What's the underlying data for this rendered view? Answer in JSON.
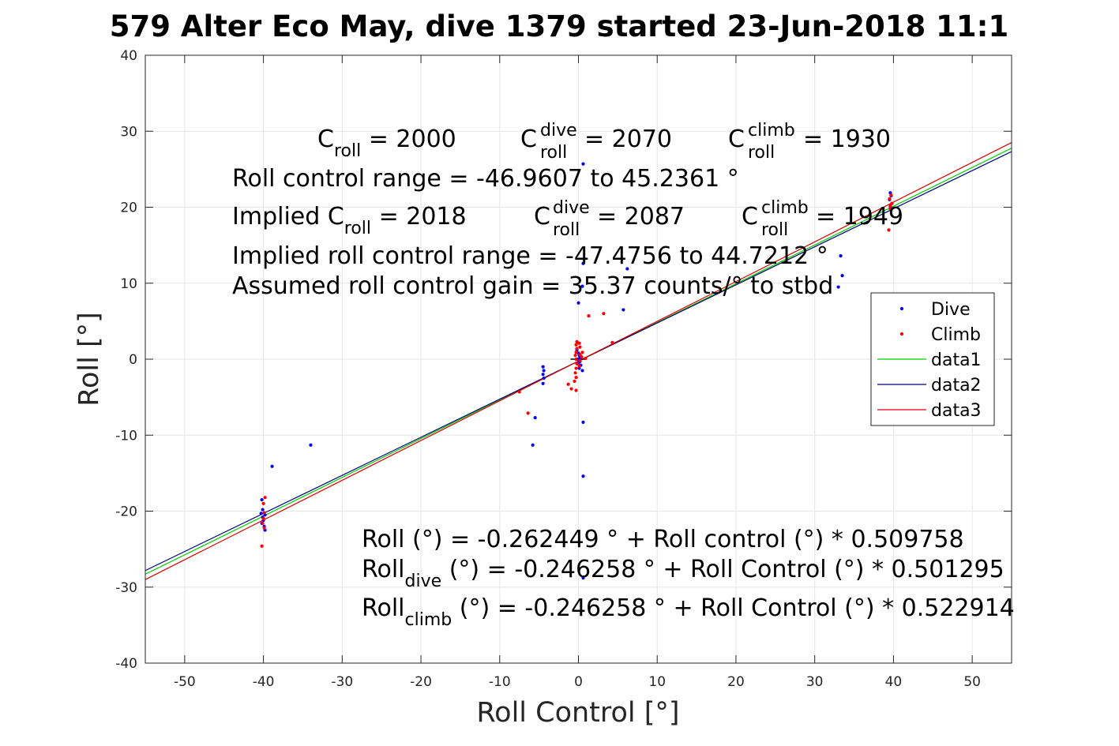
{
  "figure": {
    "title": "579 Alter Eco May, dive 1379 started 23-Jun-2018 11:1",
    "xlabel": "Roll Control [°]",
    "ylabel": "Roll [°]"
  },
  "annotations": {
    "c_roll": {
      "base": "C",
      "sub": "roll",
      "value": " = 2000"
    },
    "c_roll_dive": {
      "base": "C",
      "sup": "dive",
      "sub": "roll",
      "value": " = 2070"
    },
    "c_roll_climb": {
      "base": "C",
      "sup": "climb",
      "sub": "roll",
      "value": " = 1930"
    },
    "roll_control_range": "Roll control range = -46.9607 to 45.2361 °",
    "implied_c_roll": {
      "base": "Implied C",
      "sub": "roll",
      "value": " = 2018"
    },
    "implied_c_roll_dive": {
      "base": "C",
      "sup": "dive",
      "sub": "roll",
      "value": " = 2087"
    },
    "implied_c_roll_climb": {
      "base": "C",
      "sup": "climb",
      "sub": "roll",
      "value": " = 1949"
    },
    "implied_range": "Implied roll control range = -47.4756 to 44.7212 °",
    "assumed_gain": "Assumed roll control gain = 35.37 counts/° to stbd",
    "fit_all": "Roll (°) = -0.262449 ° + Roll control (°) * 0.509758",
    "fit_dive": {
      "base": "Roll",
      "sub": "dive",
      "value": " (°) = -0.246258 ° + Roll Control (°) * 0.501295"
    },
    "fit_climb": {
      "base": "Roll",
      "sub": "climb",
      "value": " (°) = -0.246258 ° + Roll Control (°) * 0.522914"
    }
  },
  "chart_data": {
    "type": "scatter",
    "title": "579 Alter Eco May, dive 1379 started 23-Jun-2018 11:1",
    "xlabel": "Roll Control [°]",
    "ylabel": "Roll [°]",
    "xlim": [
      -55,
      55
    ],
    "ylim": [
      -40,
      40
    ],
    "xticks": [
      -50,
      -40,
      -30,
      -20,
      -10,
      0,
      10,
      20,
      30,
      40,
      50
    ],
    "yticks": [
      -40,
      -30,
      -20,
      -10,
      0,
      10,
      20,
      30,
      40
    ],
    "grid": true,
    "legend_position": "right",
    "series": [
      {
        "name": "Dive",
        "kind": "points",
        "color": "#0000ff",
        "points": [
          [
            -40.2,
            -18.5
          ],
          [
            -40.3,
            -20.3
          ],
          [
            -40.1,
            -20.8
          ],
          [
            -40.0,
            -21.2
          ],
          [
            -40.2,
            -21.6
          ],
          [
            -39.9,
            -22.0
          ],
          [
            -39.8,
            -22.5
          ],
          [
            -40.1,
            -19.8
          ],
          [
            -39.8,
            -20.5
          ],
          [
            -40.0,
            -21.0
          ],
          [
            -38.9,
            -14.1
          ],
          [
            -34.0,
            -11.3
          ],
          [
            -4.5,
            -1.0
          ],
          [
            -4.4,
            -1.5
          ],
          [
            -4.5,
            -2.0
          ],
          [
            -4.4,
            -2.5
          ],
          [
            -4.5,
            -3.2
          ],
          [
            -5.5,
            -7.7
          ],
          [
            -5.8,
            -11.3
          ],
          [
            0.6,
            25.7
          ],
          [
            0.6,
            12.6
          ],
          [
            0.5,
            9.6
          ],
          [
            0.0,
            7.4
          ],
          [
            -0.2,
            1.2
          ],
          [
            0.0,
            0.8
          ],
          [
            0.1,
            0.5
          ],
          [
            0.2,
            0.2
          ],
          [
            -0.1,
            0.0
          ],
          [
            0.2,
            -0.3
          ],
          [
            0.0,
            -0.5
          ],
          [
            0.3,
            -0.8
          ],
          [
            0.1,
            -1.2
          ],
          [
            0.5,
            -1.5
          ],
          [
            0.6,
            -8.3
          ],
          [
            0.6,
            -15.4
          ],
          [
            0.6,
            -28.8
          ],
          [
            5.7,
            6.5
          ],
          [
            6.2,
            11.9
          ],
          [
            33.3,
            13.6
          ],
          [
            33.5,
            11.0
          ],
          [
            33.0,
            9.5
          ],
          [
            39.6,
            21.9
          ],
          [
            39.7,
            21.5
          ],
          [
            39.5,
            21.0
          ],
          [
            39.8,
            20.5
          ],
          [
            39.6,
            20.0
          ]
        ]
      },
      {
        "name": "Climb",
        "kind": "points",
        "color": "#ff0000",
        "points": [
          [
            -39.8,
            -18.2
          ],
          [
            -40.0,
            -19.0
          ],
          [
            -39.9,
            -20.2
          ],
          [
            -40.0,
            -21.0
          ],
          [
            -40.1,
            -21.6
          ],
          [
            -39.9,
            -22.2
          ],
          [
            -40.2,
            -24.6
          ],
          [
            -7.5,
            -4.3
          ],
          [
            -6.4,
            -7.1
          ],
          [
            -1.3,
            -3.3
          ],
          [
            -0.9,
            -3.9
          ],
          [
            -0.3,
            -4.1
          ],
          [
            -0.5,
            -2.9
          ],
          [
            -0.3,
            -2.4
          ],
          [
            -0.4,
            -1.8
          ],
          [
            -0.3,
            -1.2
          ],
          [
            -0.2,
            -0.6
          ],
          [
            -0.3,
            0.0
          ],
          [
            -0.4,
            0.5
          ],
          [
            -0.3,
            0.9
          ],
          [
            -0.2,
            1.4
          ],
          [
            -0.3,
            1.9
          ],
          [
            -0.2,
            2.3
          ],
          [
            0.1,
            2.1
          ],
          [
            0.2,
            1.6
          ],
          [
            0.2,
            0.6
          ],
          [
            0.2,
            -0.2
          ],
          [
            0.1,
            -0.9
          ],
          [
            0.4,
            0.3
          ],
          [
            0.5,
            0.9
          ],
          [
            0.9,
            0.1
          ],
          [
            1.3,
            5.7
          ],
          [
            3.2,
            6.0
          ],
          [
            4.3,
            2.2
          ],
          [
            39.4,
            17.0
          ],
          [
            39.6,
            19.8
          ],
          [
            39.8,
            20.5
          ],
          [
            39.5,
            21.1
          ],
          [
            39.7,
            21.6
          ],
          [
            39.6,
            20.2
          ]
        ]
      },
      {
        "name": "data1",
        "kind": "line",
        "color": "#00d000",
        "x": [
          -55,
          55
        ],
        "intercept": -0.262449,
        "slope": 0.509758
      },
      {
        "name": "data2",
        "kind": "line",
        "color": "#000080",
        "x": [
          -55,
          55
        ],
        "intercept": -0.246258,
        "slope": 0.501295
      },
      {
        "name": "data3",
        "kind": "line",
        "color": "#dd0000",
        "x": [
          -55,
          55
        ],
        "intercept": -0.246258,
        "slope": 0.522914
      }
    ],
    "extra_marks": [
      {
        "kind": "segment",
        "color": "#000000",
        "x": [
          -1.0,
          1.0
        ],
        "y": [
          0,
          0
        ]
      }
    ]
  },
  "colors": {
    "dive": "#0000ff",
    "climb": "#ff0000",
    "data1": "#00d000",
    "data2": "#000080",
    "data3": "#dd0000",
    "grid": "#e6e6e6",
    "axis": "#262626"
  }
}
